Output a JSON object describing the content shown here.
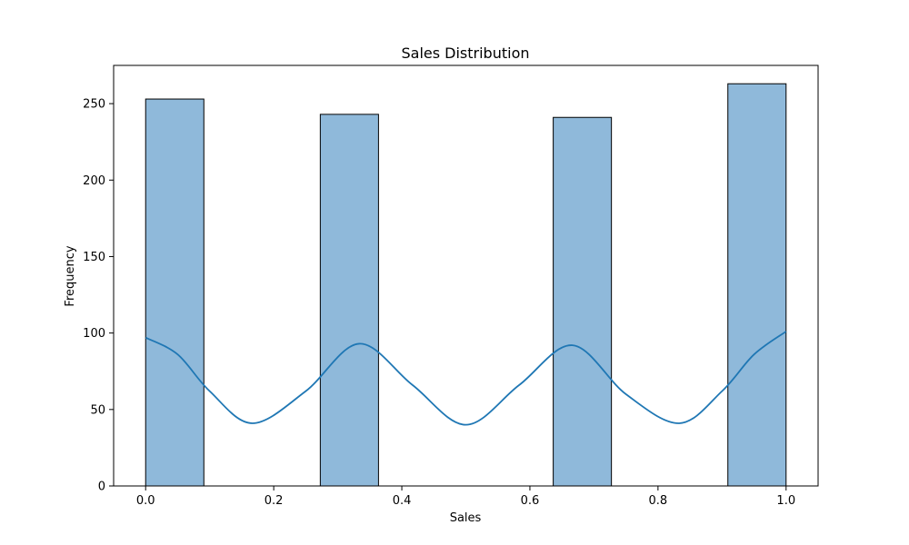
{
  "chart_data": {
    "type": "bar",
    "title": "Sales Distribution",
    "xlabel": "Sales",
    "ylabel": "Frequency",
    "xlim": [
      -0.05,
      1.05
    ],
    "ylim": [
      0,
      275
    ],
    "xticks": [
      0.0,
      0.2,
      0.4,
      0.6,
      0.8,
      1.0
    ],
    "xtick_labels": [
      "0.0",
      "0.2",
      "0.4",
      "0.6",
      "0.8",
      "1.0"
    ],
    "yticks": [
      0,
      50,
      100,
      150,
      200,
      250
    ],
    "ytick_labels": [
      "0",
      "50",
      "100",
      "150",
      "200",
      "250"
    ],
    "grid": false,
    "bins": [
      {
        "x0": 0.0,
        "x1": 0.0909,
        "count": 253
      },
      {
        "x0": 0.2727,
        "x1": 0.3636,
        "count": 243
      },
      {
        "x0": 0.6364,
        "x1": 0.7273,
        "count": 241
      },
      {
        "x0": 0.9091,
        "x1": 1.0,
        "count": 263
      }
    ],
    "kde": {
      "x": [
        0.0,
        0.05,
        0.1,
        0.1667,
        0.25,
        0.3333,
        0.4167,
        0.5,
        0.5833,
        0.6667,
        0.75,
        0.8333,
        0.9,
        0.95,
        1.0
      ],
      "y": [
        97,
        86,
        62,
        41,
        62,
        93,
        66,
        40,
        66,
        92,
        60,
        41,
        62,
        86,
        101
      ]
    },
    "colors": {
      "bar_fill": "#8fb9da",
      "bar_edge": "#000000",
      "kde_line": "#1f77b4"
    }
  }
}
